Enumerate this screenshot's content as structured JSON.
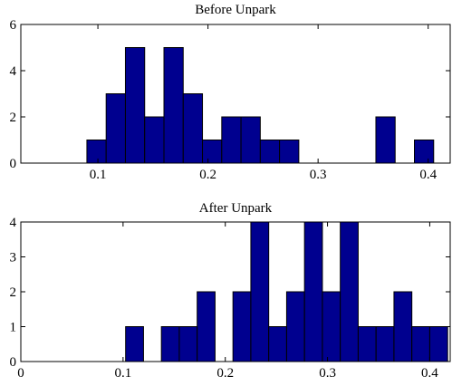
{
  "chart_data": [
    {
      "type": "bar",
      "title": "Before Unpark",
      "bin_width": 0.0175,
      "x": [
        0.09,
        0.1075,
        0.125,
        0.1425,
        0.16,
        0.1775,
        0.195,
        0.2125,
        0.23,
        0.2475,
        0.265,
        0.3525,
        0.3875
      ],
      "values": [
        1,
        3,
        5,
        2,
        5,
        3,
        1,
        2,
        2,
        1,
        1,
        2,
        1
      ],
      "xlim": [
        0.03,
        0.42
      ],
      "ylim": [
        0,
        6
      ],
      "xticks": [
        "0.1",
        "0.2",
        "0.3",
        "0.4"
      ],
      "yticks": [
        "0",
        "2",
        "4",
        "6"
      ],
      "grid": false
    },
    {
      "type": "bar",
      "title": "After Unpark",
      "bin_width": 0.0175,
      "x": [
        0.1025,
        0.1375,
        0.155,
        0.1725,
        0.2075,
        0.225,
        0.2425,
        0.26,
        0.2775,
        0.295,
        0.3125,
        0.33,
        0.3475,
        0.365,
        0.3825,
        0.4
      ],
      "values": [
        1,
        1,
        1,
        2,
        2,
        4,
        1,
        2,
        4,
        2,
        4,
        1,
        1,
        2,
        1,
        1
      ],
      "xlim": [
        0,
        0.42
      ],
      "ylim": [
        0,
        4
      ],
      "xticks": [
        "0",
        "0.1",
        "0.2",
        "0.3",
        "0.4"
      ],
      "yticks": [
        "0",
        "1",
        "2",
        "3",
        "4"
      ],
      "grid": false
    }
  ]
}
